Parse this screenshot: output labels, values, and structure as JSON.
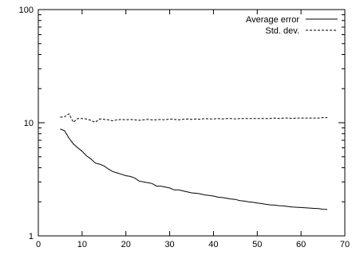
{
  "chart_data": {
    "type": "line",
    "xlim": [
      0,
      70
    ],
    "ylim": [
      1,
      100
    ],
    "y_scale": "log",
    "grid": false,
    "legend_position": "top-right",
    "x_ticks": [
      0,
      10,
      20,
      30,
      40,
      50,
      60,
      70
    ],
    "y_ticks": [
      1,
      10,
      100
    ],
    "x_tick_labels": [
      "0",
      "10",
      "20",
      "30",
      "40",
      "50",
      "60",
      "70"
    ],
    "y_tick_labels": [
      "1",
      "10",
      "100"
    ],
    "series": [
      {
        "name": "Average error",
        "style": "solid",
        "x": [
          5,
          6,
          7,
          8,
          9,
          10,
          11,
          12,
          13,
          14,
          15,
          16,
          17,
          18,
          19,
          20,
          21,
          22,
          23,
          24,
          25,
          26,
          27,
          28,
          29,
          30,
          31,
          32,
          33,
          34,
          35,
          36,
          37,
          38,
          39,
          40,
          41,
          42,
          43,
          44,
          45,
          46,
          47,
          48,
          49,
          50,
          51,
          52,
          53,
          54,
          55,
          56,
          57,
          58,
          59,
          60,
          61,
          62,
          63,
          64,
          65,
          66
        ],
        "y": [
          8.8,
          8.5,
          7.3,
          6.5,
          6.0,
          5.6,
          5.1,
          4.8,
          4.4,
          4.3,
          4.15,
          3.9,
          3.7,
          3.6,
          3.5,
          3.4,
          3.35,
          3.25,
          3.05,
          3.0,
          2.95,
          2.9,
          2.75,
          2.75,
          2.7,
          2.65,
          2.55,
          2.55,
          2.5,
          2.45,
          2.4,
          2.38,
          2.35,
          2.3,
          2.28,
          2.25,
          2.2,
          2.18,
          2.15,
          2.12,
          2.1,
          2.05,
          2.03,
          2.0,
          1.98,
          1.95,
          1.93,
          1.9,
          1.88,
          1.87,
          1.85,
          1.84,
          1.82,
          1.8,
          1.79,
          1.78,
          1.77,
          1.76,
          1.75,
          1.74,
          1.72,
          1.71
        ]
      },
      {
        "name": "Std. dev.",
        "style": "dashed",
        "x": [
          5,
          6,
          7,
          8,
          9,
          10,
          11,
          12,
          13,
          14,
          15,
          16,
          17,
          18,
          19,
          20,
          21,
          22,
          23,
          24,
          25,
          26,
          27,
          28,
          29,
          30,
          31,
          32,
          33,
          34,
          35,
          36,
          37,
          38,
          39,
          40,
          41,
          42,
          43,
          44,
          45,
          46,
          47,
          48,
          49,
          50,
          51,
          52,
          53,
          54,
          55,
          56,
          57,
          58,
          59,
          60,
          61,
          62,
          63,
          64,
          65,
          66
        ],
        "y": [
          11.2,
          11.3,
          12.0,
          10.1,
          10.9,
          10.9,
          10.8,
          10.5,
          10.1,
          10.8,
          10.7,
          10.6,
          10.4,
          10.6,
          10.7,
          10.6,
          10.7,
          10.6,
          10.5,
          10.6,
          10.7,
          10.6,
          10.6,
          10.7,
          10.6,
          10.8,
          10.7,
          10.6,
          10.7,
          10.8,
          10.7,
          10.8,
          10.7,
          10.9,
          10.8,
          10.8,
          10.9,
          10.8,
          10.9,
          10.9,
          10.8,
          10.9,
          10.9,
          10.9,
          10.9,
          10.9,
          10.9,
          10.9,
          10.9,
          11.0,
          10.9,
          11.0,
          11.0,
          10.9,
          11.0,
          11.0,
          11.0,
          11.0,
          11.0,
          11.0,
          11.1,
          11.1
        ]
      }
    ]
  }
}
